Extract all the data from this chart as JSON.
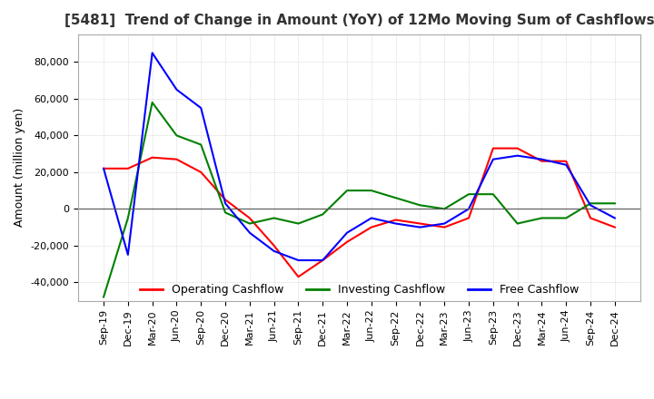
{
  "title": "[5481]  Trend of Change in Amount (YoY) of 12Mo Moving Sum of Cashflows",
  "ylabel": "Amount (million yen)",
  "ylim": [
    -50000,
    95000
  ],
  "yticks": [
    -40000,
    -20000,
    0,
    20000,
    40000,
    60000,
    80000
  ],
  "x_labels": [
    "Sep-19",
    "Dec-19",
    "Mar-20",
    "Jun-20",
    "Sep-20",
    "Dec-20",
    "Mar-21",
    "Jun-21",
    "Sep-21",
    "Dec-21",
    "Mar-22",
    "Jun-22",
    "Sep-22",
    "Dec-22",
    "Mar-23",
    "Jun-23",
    "Sep-23",
    "Dec-23",
    "Mar-24",
    "Jun-24",
    "Sep-24",
    "Dec-24"
  ],
  "operating": [
    22000,
    22000,
    28000,
    27000,
    20000,
    5000,
    -5000,
    -20000,
    -37000,
    -28000,
    -18000,
    -10000,
    -6000,
    -8000,
    -10000,
    -5000,
    33000,
    33000,
    26000,
    26000,
    -5000,
    -10000
  ],
  "investing": [
    -48000,
    -5000,
    58000,
    40000,
    35000,
    -2000,
    -8000,
    -5000,
    -8000,
    -3000,
    10000,
    10000,
    6000,
    2000,
    0,
    8000,
    8000,
    -8000,
    -5000,
    -5000,
    3000,
    3000
  ],
  "free": [
    22000,
    -25000,
    85000,
    65000,
    55000,
    3000,
    -13000,
    -23000,
    -28000,
    -28000,
    -13000,
    -5000,
    -8000,
    -10000,
    -8000,
    0,
    27000,
    29000,
    27000,
    24000,
    2000,
    -5000
  ],
  "operating_color": "#ff0000",
  "investing_color": "#008000",
  "free_color": "#0000ff",
  "bg_color": "#ffffff",
  "grid_color": "#c0c0c0",
  "grid_style": "dotted",
  "title_color": "#333333"
}
